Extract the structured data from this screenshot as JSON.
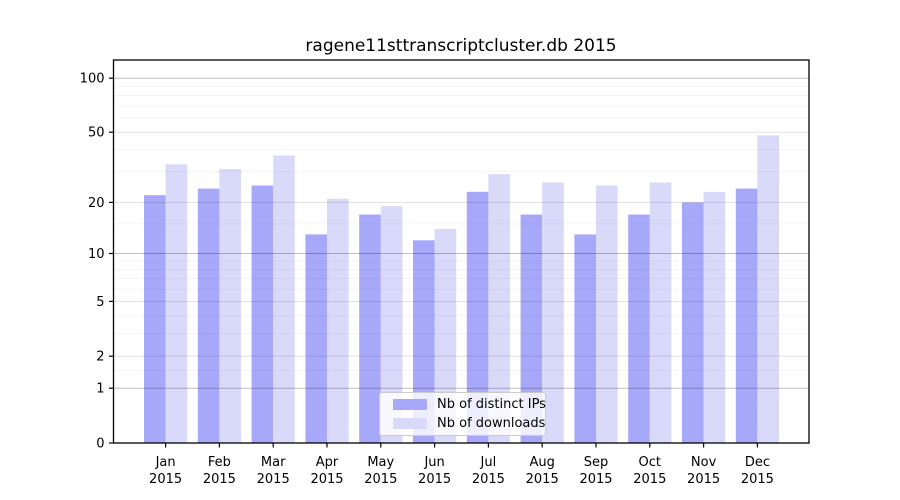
{
  "chart_data": {
    "type": "bar",
    "title": "ragene11sttranscriptcluster.db 2015",
    "categories": [
      "Jan",
      "Feb",
      "Mar",
      "Apr",
      "May",
      "Jun",
      "Jul",
      "Aug",
      "Sep",
      "Oct",
      "Nov",
      "Dec"
    ],
    "category_year": "2015",
    "series": [
      {
        "name": "Nb of distinct IPs",
        "color": "#a8a8fa",
        "values": [
          22,
          24,
          25,
          13,
          17,
          12,
          23,
          17,
          13,
          17,
          20,
          24
        ]
      },
      {
        "name": "Nb of downloads",
        "color": "#d9d9fa",
        "values": [
          33,
          31,
          37,
          21,
          19,
          14,
          29,
          26,
          25,
          26,
          23,
          48
        ]
      }
    ],
    "yscale": "log1p",
    "ylim": [
      0,
      126
    ],
    "yticks": [
      0,
      1,
      2,
      5,
      10,
      20,
      50,
      100
    ],
    "gridlines": {
      "decade": [
        1,
        10,
        100
      ],
      "labeled": [
        2,
        5,
        20,
        50
      ],
      "minor": [
        1.5,
        3,
        4,
        6,
        7,
        8,
        9,
        15,
        30,
        40,
        60,
        70,
        80,
        90
      ]
    },
    "legend_position": "bottom-center",
    "xlabel": "",
    "ylabel": ""
  }
}
